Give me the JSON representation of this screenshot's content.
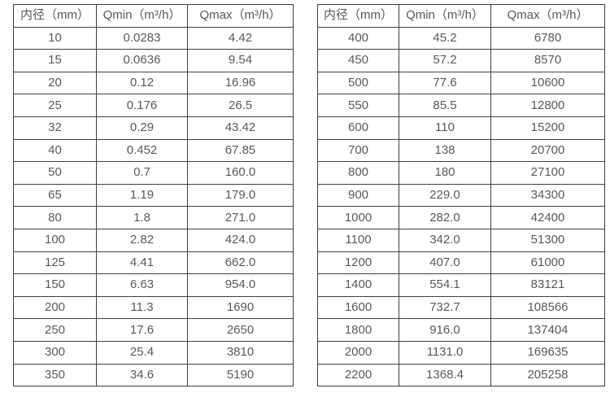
{
  "page": {
    "background_color": "#ffffff",
    "text_color": "#595959",
    "border_color": "#3f3f3f"
  },
  "tables": [
    {
      "name": "flow-range-table-small-diameters",
      "headers": [
        "内径（mm）",
        "Qmin（m³/h）",
        "Qmax（m³/h）"
      ],
      "rows": [
        [
          "10",
          "0.0283",
          "4.42"
        ],
        [
          "15",
          "0.0636",
          "9.54"
        ],
        [
          "20",
          "0.12",
          "16.96"
        ],
        [
          "25",
          "0.176",
          "26.5"
        ],
        [
          "32",
          "0.29",
          "43.42"
        ],
        [
          "40",
          "0.452",
          "67.85"
        ],
        [
          "50",
          "0.7",
          "160.0"
        ],
        [
          "65",
          "1.19",
          "179.0"
        ],
        [
          "80",
          "1.8",
          "271.0"
        ],
        [
          "100",
          "2.82",
          "424.0"
        ],
        [
          "125",
          "4.41",
          "662.0"
        ],
        [
          "150",
          "6.63",
          "954.0"
        ],
        [
          "200",
          "11.3",
          "1690"
        ],
        [
          "250",
          "17.6",
          "2650"
        ],
        [
          "300",
          "25.4",
          "3810"
        ],
        [
          "350",
          "34.6",
          "5190"
        ]
      ]
    },
    {
      "name": "flow-range-table-large-diameters",
      "headers": [
        "内径（mm）",
        "Qmin（m³/h）",
        "Qmax（m³/h）"
      ],
      "rows": [
        [
          "400",
          "45.2",
          "6780"
        ],
        [
          "450",
          "57.2",
          "8570"
        ],
        [
          "500",
          "77.6",
          "10600"
        ],
        [
          "550",
          "85.5",
          "12800"
        ],
        [
          "600",
          "110",
          "15200"
        ],
        [
          "700",
          "138",
          "20700"
        ],
        [
          "800",
          "180",
          "27100"
        ],
        [
          "900",
          "229.0",
          "34300"
        ],
        [
          "1000",
          "282.0",
          "42400"
        ],
        [
          "1100",
          "342.0",
          "51300"
        ],
        [
          "1200",
          "407.0",
          "61000"
        ],
        [
          "1400",
          "554.1",
          "83121"
        ],
        [
          "1600",
          "732.7",
          "108566"
        ],
        [
          "1800",
          "916.0",
          "137404"
        ],
        [
          "2000",
          "1131.0",
          "169635"
        ],
        [
          "2200",
          "1368.4",
          "205258"
        ]
      ]
    }
  ]
}
